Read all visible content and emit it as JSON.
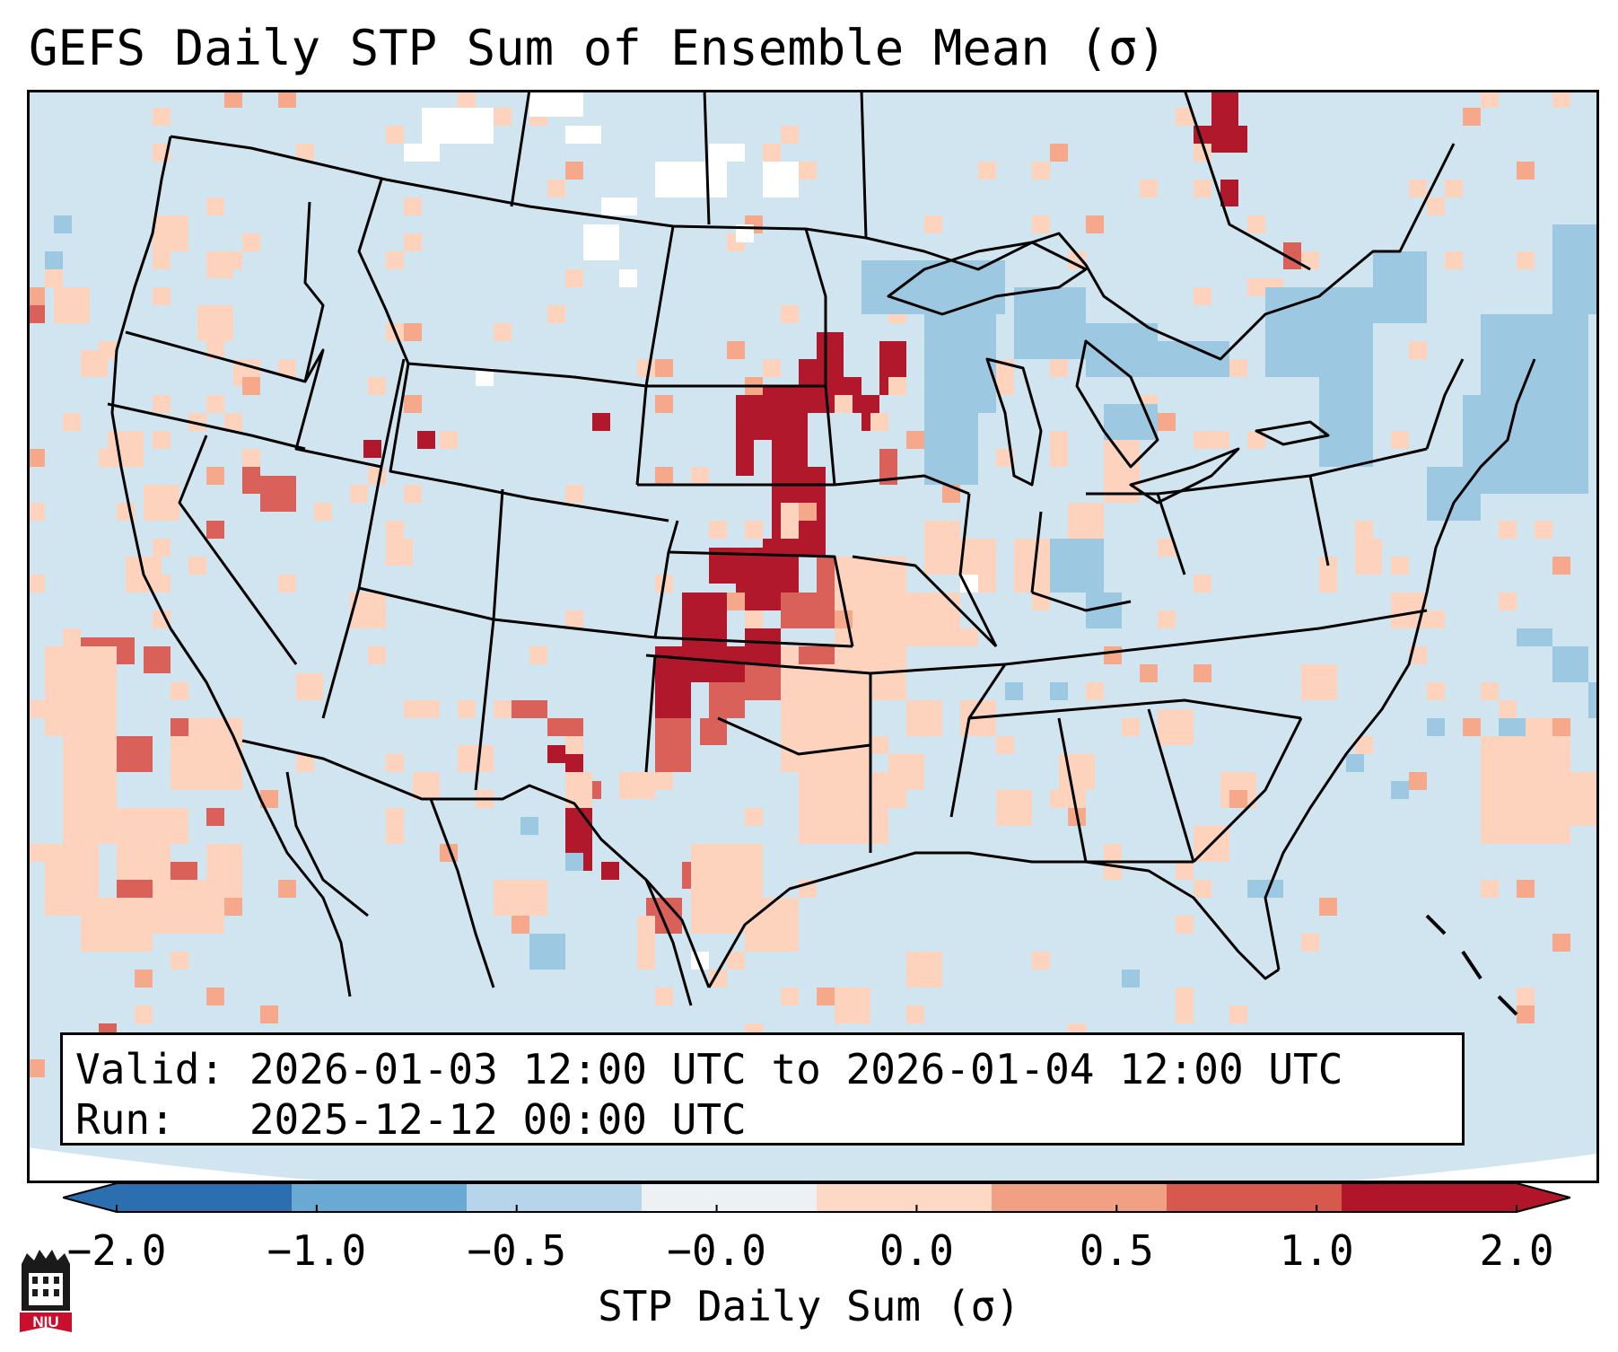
{
  "title": "GEFS Daily STP Sum of Ensemble Mean (σ)",
  "info": {
    "valid": "Valid: 2026-01-03 12:00 UTC to 2026-01-04 12:00 UTC",
    "run": "Run:   2025-12-12 00:00 UTC"
  },
  "colorbar": {
    "label": "STP Daily Sum (σ)",
    "ticks": [
      "−2.0",
      "−1.0",
      "−0.5",
      "−0.0",
      "0.0",
      "0.5",
      "1.0",
      "2.0"
    ],
    "colors": [
      "#2b6fb0",
      "#6aa9d3",
      "#b6d5ea",
      "#eef1f4",
      "#fdd9c5",
      "#f2a084",
      "#d7584c",
      "#b0152a"
    ]
  },
  "map_colors": {
    "ocean": "#cfe3f0",
    "land": "#d1e5f0",
    "weak_light_red": "#fdd3bd",
    "light_red": "#f5a98a",
    "medium_red": "#d9615a",
    "dark_red": "#b2182b",
    "light_blue": "#9dc8e2",
    "near_zero": "#ffffff"
  },
  "logo": {
    "text": "NIU"
  }
}
